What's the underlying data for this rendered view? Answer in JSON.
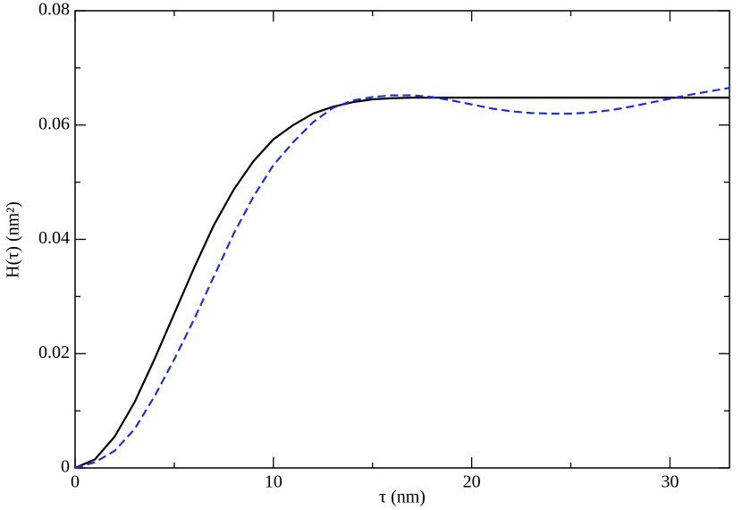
{
  "chart_data": {
    "type": "line",
    "xlabel": "τ (nm)",
    "ylabel": "H(τ) (nm²)",
    "x": [
      0,
      1,
      2,
      3,
      4,
      5,
      6,
      7,
      8,
      9,
      10,
      11,
      12,
      13,
      14,
      15,
      16,
      17,
      18,
      19,
      20,
      21,
      22,
      23,
      24,
      25,
      26,
      27,
      28,
      29,
      30,
      31,
      32,
      33
    ],
    "series": [
      {
        "color": "#000000",
        "dash": "none",
        "values": [
          0,
          0.0015,
          0.0055,
          0.0115,
          0.019,
          0.027,
          0.035,
          0.0425,
          0.0487,
          0.0537,
          0.0575,
          0.06,
          0.062,
          0.0632,
          0.064,
          0.0645,
          0.0647,
          0.0648,
          0.0648,
          0.0648,
          0.0648,
          0.0648,
          0.0648,
          0.0648,
          0.0648,
          0.0648,
          0.0648,
          0.0648,
          0.0648,
          0.0648,
          0.0648,
          0.0648,
          0.0648,
          0.0648
        ]
      },
      {
        "color": "#1f2fd8",
        "dash": "9 5",
        "values": [
          0,
          0.001,
          0.003,
          0.0068,
          0.0125,
          0.019,
          0.026,
          0.0335,
          0.041,
          0.0475,
          0.053,
          0.057,
          0.0605,
          0.063,
          0.0643,
          0.0649,
          0.0652,
          0.0652,
          0.0649,
          0.0643,
          0.0636,
          0.0629,
          0.0624,
          0.0621,
          0.062,
          0.062,
          0.0622,
          0.0626,
          0.0632,
          0.0639,
          0.0646,
          0.0653,
          0.0659,
          0.0665
        ]
      }
    ],
    "xlim": [
      0,
      33
    ],
    "ylim": [
      0,
      0.08
    ],
    "xticks": [
      0,
      10,
      20,
      30
    ],
    "yticks": [
      0,
      0.02,
      0.04,
      0.06,
      0.08
    ],
    "xminorticks": [
      5,
      15,
      25
    ],
    "yminorticks": [
      0.01,
      0.03,
      0.05,
      0.07
    ]
  }
}
